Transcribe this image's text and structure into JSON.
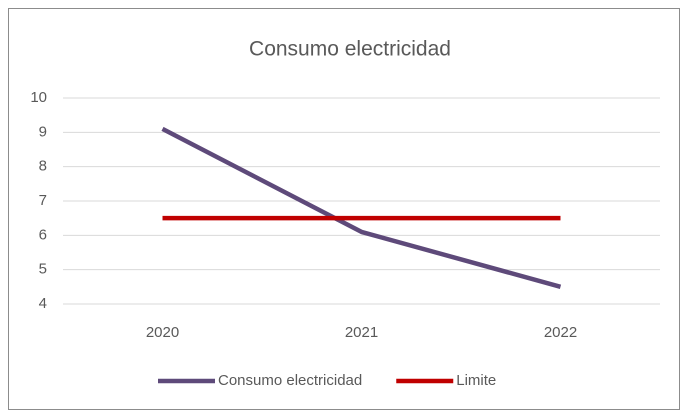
{
  "chart_data": {
    "type": "line",
    "title": "Consumo electricidad",
    "categories": [
      "2020",
      "2021",
      "2022"
    ],
    "series": [
      {
        "name": "Consumo electricidad",
        "color": "#5e4a7a",
        "values": [
          9.1,
          6.1,
          4.5
        ]
      },
      {
        "name": "Limite",
        "color": "#c00000",
        "values": [
          6.5,
          6.5,
          6.5
        ]
      }
    ],
    "ylim": [
      4,
      10
    ],
    "yticks": [
      4,
      5,
      6,
      7,
      8,
      9,
      10
    ],
    "grid": true,
    "legend": "bottom"
  }
}
